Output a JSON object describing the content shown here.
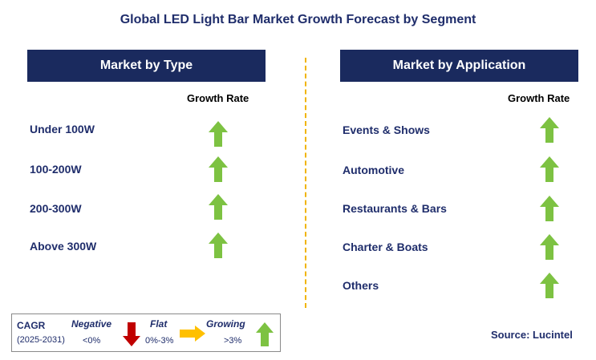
{
  "title": "Global LED Light Bar Market Growth Forecast by Segment",
  "left_panel": {
    "header": "Market by Type",
    "growth_label": "Growth Rate",
    "rows": [
      {
        "label": "Under 100W",
        "trend": "growing"
      },
      {
        "label": "100-200W",
        "trend": "growing"
      },
      {
        "label": "200-300W",
        "trend": "growing"
      },
      {
        "label": "Above 300W",
        "trend": "growing"
      }
    ]
  },
  "right_panel": {
    "header": "Market by Application",
    "growth_label": "Growth Rate",
    "rows": [
      {
        "label": "Events & Shows",
        "trend": "growing"
      },
      {
        "label": "Automotive",
        "trend": "growing"
      },
      {
        "label": "Restaurants & Bars",
        "trend": "growing"
      },
      {
        "label": "Charter & Boats",
        "trend": "growing"
      },
      {
        "label": "Others",
        "trend": "growing"
      }
    ]
  },
  "legend": {
    "cagr": "CAGR",
    "period": "(2025-2031)",
    "negative_label": "Negative",
    "negative_range": "<0%",
    "flat_label": "Flat",
    "flat_range": "0%-3%",
    "growing_label": "Growing",
    "growing_range": ">3%"
  },
  "source": "Source: Lucintel",
  "colors": {
    "header_bg": "#1a2a5e",
    "text_navy": "#1f2d6b",
    "growing": "#7dc242",
    "negative": "#c00000",
    "flat": "#ffc000",
    "divider": "#f0b400"
  }
}
